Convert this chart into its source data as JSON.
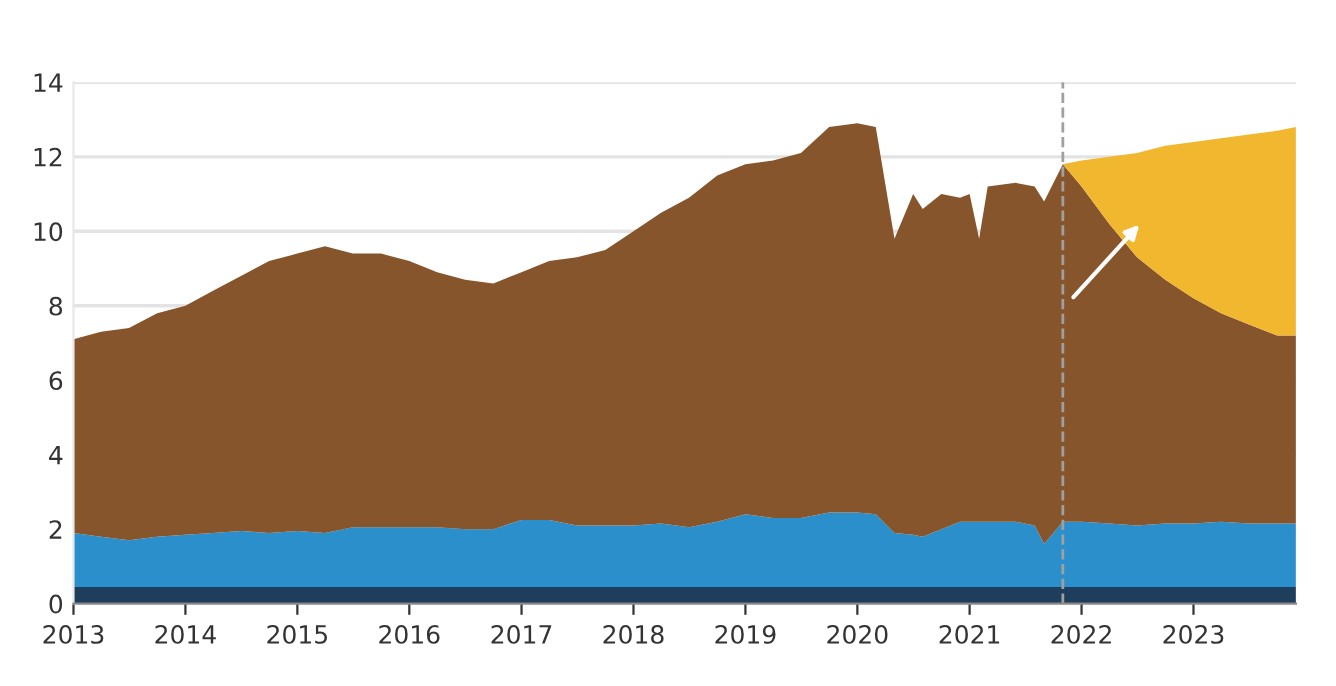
{
  "chart_data": {
    "type": "area",
    "stacked": true,
    "x": [
      "2013-01",
      "2013-04",
      "2013-07",
      "2013-10",
      "2014-01",
      "2014-04",
      "2014-07",
      "2014-10",
      "2015-01",
      "2015-04",
      "2015-07",
      "2015-10",
      "2016-01",
      "2016-04",
      "2016-07",
      "2016-10",
      "2017-01",
      "2017-04",
      "2017-07",
      "2017-10",
      "2018-01",
      "2018-04",
      "2018-07",
      "2018-10",
      "2019-01",
      "2019-04",
      "2019-07",
      "2019-10",
      "2020-01",
      "2020-03",
      "2020-05",
      "2020-07",
      "2020-08",
      "2020-10",
      "2020-12",
      "2021-01",
      "2021-02",
      "2021-03",
      "2021-06",
      "2021-08",
      "2021-09",
      "2021-11",
      "2022-01",
      "2022-04",
      "2022-07",
      "2022-10",
      "2023-01",
      "2023-04",
      "2023-07",
      "2023-10",
      "2023-12"
    ],
    "series": [
      {
        "color": "#1f3d5c",
        "values": [
          0.45,
          0.45,
          0.45,
          0.45,
          0.45,
          0.45,
          0.45,
          0.45,
          0.45,
          0.45,
          0.45,
          0.45,
          0.45,
          0.45,
          0.45,
          0.45,
          0.45,
          0.45,
          0.45,
          0.45,
          0.45,
          0.45,
          0.45,
          0.45,
          0.45,
          0.45,
          0.45,
          0.45,
          0.45,
          0.45,
          0.45,
          0.45,
          0.45,
          0.45,
          0.45,
          0.45,
          0.45,
          0.45,
          0.45,
          0.45,
          0.45,
          0.45,
          0.45,
          0.45,
          0.45,
          0.45,
          0.45,
          0.45,
          0.45,
          0.45,
          0.45
        ]
      },
      {
        "color": "#2b8fcb",
        "values": [
          1.45,
          1.35,
          1.25,
          1.35,
          1.4,
          1.45,
          1.5,
          1.45,
          1.5,
          1.45,
          1.6,
          1.6,
          1.6,
          1.6,
          1.55,
          1.55,
          1.8,
          1.8,
          1.65,
          1.65,
          1.65,
          1.7,
          1.6,
          1.75,
          1.95,
          1.85,
          1.85,
          2.0,
          2.0,
          1.95,
          1.45,
          1.4,
          1.35,
          1.55,
          1.75,
          1.75,
          1.75,
          1.75,
          1.75,
          1.65,
          1.15,
          1.75,
          1.75,
          1.7,
          1.65,
          1.7,
          1.7,
          1.75,
          1.7,
          1.7,
          1.7
        ]
      },
      {
        "color": "#87552b",
        "values": [
          5.2,
          5.5,
          5.7,
          6.0,
          6.15,
          6.5,
          6.85,
          7.3,
          7.45,
          7.7,
          7.35,
          7.35,
          7.15,
          6.85,
          6.7,
          6.6,
          6.65,
          6.95,
          7.2,
          7.4,
          7.9,
          8.35,
          8.85,
          9.3,
          9.4,
          9.6,
          9.8,
          10.35,
          10.45,
          10.4,
          7.9,
          9.15,
          8.8,
          9.0,
          8.7,
          8.8,
          7.6,
          9.0,
          9.1,
          9.1,
          9.2,
          9.6,
          9.0,
          8.05,
          7.2,
          6.55,
          6.05,
          5.6,
          5.35,
          5.05,
          5.05
        ]
      },
      {
        "color": "#f0b72f",
        "values": [
          null,
          null,
          null,
          null,
          null,
          null,
          null,
          null,
          null,
          null,
          null,
          null,
          null,
          null,
          null,
          null,
          null,
          null,
          null,
          null,
          null,
          null,
          null,
          null,
          null,
          null,
          null,
          null,
          null,
          null,
          null,
          null,
          null,
          null,
          null,
          null,
          null,
          null,
          null,
          null,
          null,
          0.0,
          0.7,
          1.8,
          2.8,
          3.6,
          4.2,
          4.7,
          5.1,
          5.5,
          5.6
        ]
      }
    ],
    "xlim": [
      "2013-01",
      "2023-12"
    ],
    "xticks": [
      {
        "value": "2013-01",
        "label": "2013"
      },
      {
        "value": "2014-01",
        "label": "2014"
      },
      {
        "value": "2015-01",
        "label": "2015"
      },
      {
        "value": "2016-01",
        "label": "2016"
      },
      {
        "value": "2017-01",
        "label": "2017"
      },
      {
        "value": "2018-01",
        "label": "2018"
      },
      {
        "value": "2019-01",
        "label": "2019"
      },
      {
        "value": "2020-01",
        "label": "2020"
      },
      {
        "value": "2021-01",
        "label": "2021"
      },
      {
        "value": "2022-01",
        "label": "2022"
      },
      {
        "value": "2023-01",
        "label": "2023"
      }
    ],
    "ylim": [
      0,
      14
    ],
    "yticks": [
      0,
      2,
      4,
      6,
      8,
      10,
      12,
      14
    ],
    "grid": "y",
    "ref_lines": [
      {
        "axis": "x",
        "value": "2021-11",
        "color": "#a0a0a0",
        "line_style": "dashed"
      }
    ]
  }
}
